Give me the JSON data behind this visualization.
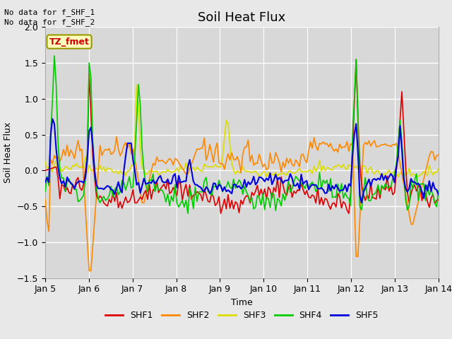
{
  "title": "Soil Heat Flux",
  "xlabel": "Time",
  "ylabel": "Soil Heat Flux",
  "ylim": [
    -1.5,
    2.0
  ],
  "yticks": [
    -1.5,
    -1.0,
    -0.5,
    0.0,
    0.5,
    1.0,
    1.5,
    2.0
  ],
  "xtick_labels": [
    "Jan 5",
    "Jan 6",
    "Jan 7",
    "Jan 8",
    "Jan 9",
    "Jan 10",
    "Jan 11",
    "Jan 12",
    "Jan 13",
    "Jan 14"
  ],
  "no_data_text1": "No data for f_SHF_1",
  "no_data_text2": "No data for f_SHF_2",
  "tz_label": "TZ_fmet",
  "legend_entries": [
    "SHF1",
    "SHF2",
    "SHF3",
    "SHF4",
    "SHF5"
  ],
  "line_colors": {
    "SHF1": "#dd0000",
    "SHF2": "#ff8800",
    "SHF3": "#dddd00",
    "SHF4": "#00cc00",
    "SHF5": "#0000dd"
  },
  "background_color": "#e8e8e8",
  "plot_bg_color": "#d8d8d8",
  "title_fontsize": 13,
  "axis_label_fontsize": 9,
  "tick_fontsize": 9,
  "legend_fontsize": 9
}
